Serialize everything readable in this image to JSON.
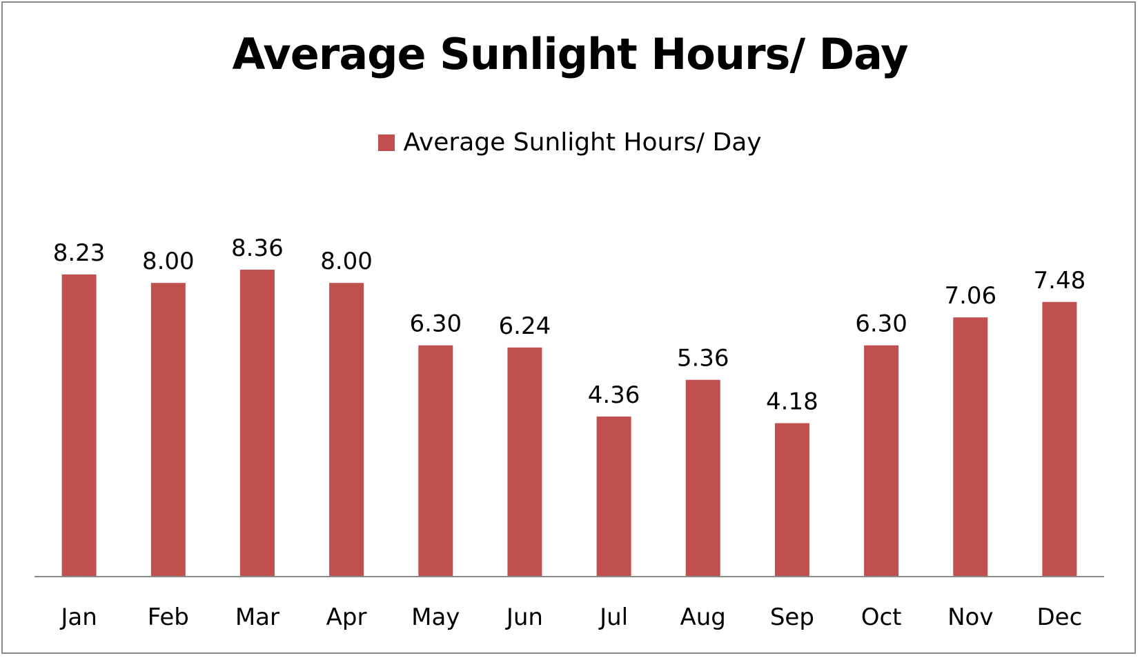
{
  "chart_data": {
    "type": "bar",
    "title": "Average Sunlight Hours/ Day",
    "categories": [
      "Jan",
      "Feb",
      "Mar",
      "Apr",
      "May",
      "Jun",
      "Jul",
      "Aug",
      "Sep",
      "Oct",
      "Nov",
      "Dec"
    ],
    "series": [
      {
        "name": "Average Sunlight Hours/ Day",
        "values": [
          8.23,
          8.0,
          8.36,
          8.0,
          6.3,
          6.24,
          4.36,
          5.36,
          4.18,
          6.3,
          7.06,
          7.48
        ],
        "value_labels": [
          "8.23",
          "8.00",
          "8.36",
          "8.00",
          "6.30",
          "6.24",
          "4.36",
          "5.36",
          "4.18",
          "6.30",
          "7.06",
          "7.48"
        ],
        "color": "#c0504d"
      }
    ],
    "xlabel": "",
    "ylabel": "",
    "ylim": [
      0,
      8.36
    ],
    "grid": false,
    "legend_position": "top",
    "data_labels": true,
    "axis_line_color": "#8a8a8a"
  }
}
